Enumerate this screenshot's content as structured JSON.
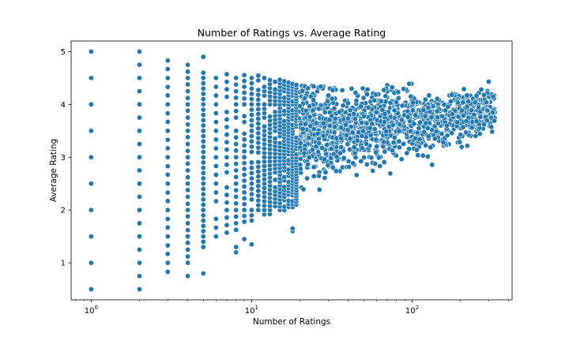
{
  "chart_data": {
    "type": "scatter",
    "title": "Number of Ratings vs. Average Rating",
    "xlabel": "Number of Ratings",
    "ylabel": "Average Rating",
    "x_scale": "log",
    "xlim": [
      0.75,
      420
    ],
    "ylim": [
      0.3,
      5.2
    ],
    "x_ticks": [
      {
        "value": 1,
        "base": "10",
        "exp": "0"
      },
      {
        "value": 10,
        "base": "10",
        "exp": "1"
      },
      {
        "value": 100,
        "base": "10",
        "exp": "2"
      }
    ],
    "y_ticks": [
      {
        "value": 1,
        "label": "1"
      },
      {
        "value": 2,
        "label": "2"
      },
      {
        "value": 3,
        "label": "3"
      },
      {
        "value": 4,
        "label": "4"
      },
      {
        "value": 5,
        "label": "5"
      }
    ],
    "grid": false,
    "legend": "none",
    "marker_color": "#1f77b4",
    "marker_edge_color": "#ffffff",
    "columns": [
      {
        "x": 1,
        "y": [
          0.5,
          1.0,
          1.5,
          2.0,
          2.5,
          3.0,
          3.5,
          4.0,
          4.5,
          5.0
        ]
      },
      {
        "x": 2,
        "y": [
          0.5,
          0.75,
          1.0,
          1.25,
          1.5,
          1.75,
          2.0,
          2.25,
          2.5,
          2.75,
          3.0,
          3.25,
          3.5,
          3.75,
          4.0,
          4.25,
          4.5,
          4.75,
          5.0
        ]
      },
      {
        "x": 3,
        "y": [
          0.83,
          1.0,
          1.17,
          1.33,
          1.5,
          1.67,
          1.83,
          2.0,
          2.17,
          2.33,
          2.5,
          2.67,
          2.83,
          3.0,
          3.17,
          3.33,
          3.5,
          3.67,
          3.83,
          4.0,
          4.17,
          4.33,
          4.5,
          4.67,
          4.83
        ]
      },
      {
        "x": 4,
        "y": [
          0.75,
          1.0,
          1.12,
          1.25,
          1.38,
          1.5,
          1.62,
          1.75,
          1.88,
          2.0,
          2.12,
          2.25,
          2.38,
          2.5,
          2.62,
          2.75,
          2.88,
          3.0,
          3.12,
          3.25,
          3.38,
          3.5,
          3.62,
          3.75,
          3.88,
          4.0,
          4.12,
          4.25,
          4.38,
          4.5,
          4.62,
          4.75
        ]
      },
      {
        "x": 5,
        "y": [
          0.8,
          1.3,
          1.4,
          1.5,
          1.6,
          1.7,
          1.8,
          1.9,
          2.0,
          2.1,
          2.2,
          2.3,
          2.4,
          2.5,
          2.6,
          2.7,
          2.8,
          2.9,
          3.0,
          3.1,
          3.2,
          3.3,
          3.4,
          3.5,
          3.6,
          3.7,
          3.8,
          3.9,
          4.0,
          4.1,
          4.2,
          4.3,
          4.4,
          4.5,
          4.6,
          4.9
        ]
      }
    ],
    "dense_band": {
      "description_free_ranges": [
        {
          "x_min": 6,
          "x_max": 9,
          "y_min": 1.2,
          "y_max": 4.7
        },
        {
          "x_min": 10,
          "x_max": 20,
          "y_min": 1.3,
          "y_max": 4.6
        },
        {
          "x_min": 20,
          "x_max": 60,
          "y_min": 1.9,
          "y_max": 4.35
        },
        {
          "x_min": 60,
          "x_max": 150,
          "y_min": 2.6,
          "y_max": 4.3
        },
        {
          "x_min": 150,
          "x_max": 330,
          "y_min": 2.9,
          "y_max": 4.45
        }
      ],
      "outliers": [
        {
          "x": 8,
          "y": 1.2
        },
        {
          "x": 8,
          "y": 1.3
        },
        {
          "x": 9,
          "y": 1.45
        },
        {
          "x": 10,
          "y": 1.35
        },
        {
          "x": 18,
          "y": 1.6
        },
        {
          "x": 18,
          "y": 1.65
        },
        {
          "x": 300,
          "y": 4.43
        },
        {
          "x": 320,
          "y": 4.15
        },
        {
          "x": 280,
          "y": 4.18
        }
      ]
    }
  }
}
